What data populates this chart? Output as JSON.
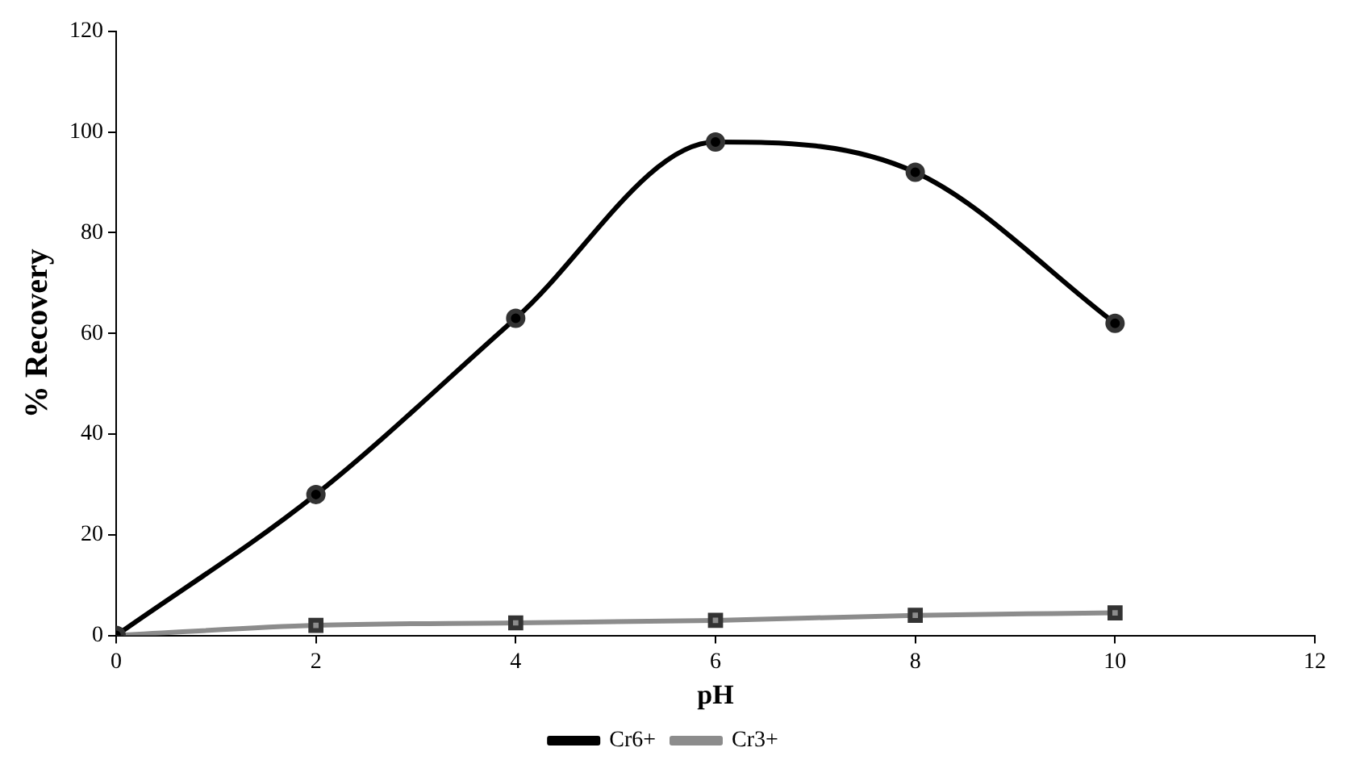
{
  "chart_data": {
    "type": "line",
    "xlabel": "pH",
    "ylabel": "% Recovery",
    "x": [
      0,
      2,
      4,
      6,
      8,
      10
    ],
    "series": [
      {
        "name": "Cr6+",
        "color": "#000000",
        "values": [
          0,
          28,
          63,
          98,
          92,
          62
        ],
        "marker": "circle"
      },
      {
        "name": "Cr3+",
        "color": "#8c8c8c",
        "values": [
          0,
          2,
          2.5,
          3,
          4,
          4.5
        ],
        "marker": "square"
      }
    ],
    "xlim": [
      0,
      12
    ],
    "xticks": [
      0,
      2,
      4,
      6,
      8,
      10,
      12
    ],
    "ylim": [
      0,
      120
    ],
    "yticks": [
      0,
      20,
      40,
      60,
      80,
      100,
      120
    ],
    "grid": false,
    "legend": "bottom"
  }
}
